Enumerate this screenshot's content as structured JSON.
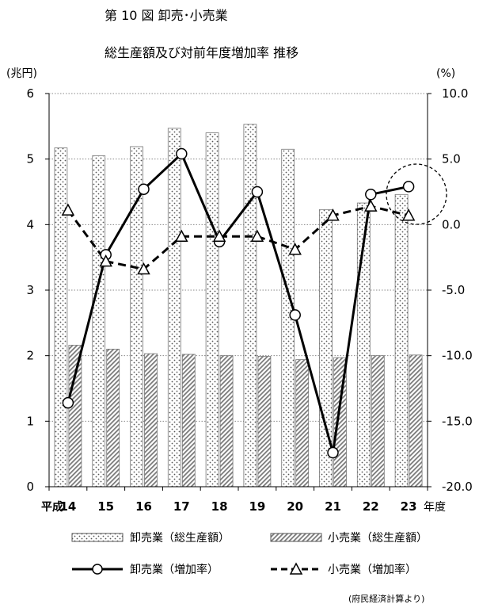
{
  "chart_data": {
    "type": "bar",
    "title": "第 10 図 卸売･小売業",
    "subtitle": "総生産額及び対前年度増加率  推移",
    "y_left_unit": "(兆円)",
    "y_right_unit": "(%)",
    "x_prefix": "平成",
    "x_suffix": "年度",
    "categories": [
      "14",
      "15",
      "16",
      "17",
      "18",
      "19",
      "20",
      "21",
      "22",
      "23"
    ],
    "ylim_left": [
      0,
      6
    ],
    "ylim_right": [
      -20.0,
      10.0
    ],
    "left_ticks": [
      "0",
      "1",
      "2",
      "3",
      "4",
      "5",
      "6"
    ],
    "right_ticks": [
      "-20.0",
      "-15.0",
      "-10.0",
      "-5.0",
      "0.0",
      "5.0",
      "10.0"
    ],
    "grid": true,
    "legend_position": "bottom",
    "series": [
      {
        "name": "卸売業（総生産額）",
        "kind": "bar",
        "axis": "left",
        "pattern": "dots",
        "values": [
          5.17,
          5.05,
          5.19,
          5.47,
          5.4,
          5.53,
          5.15,
          4.23,
          4.33,
          4.46
        ]
      },
      {
        "name": "小売業（総生産額）",
        "kind": "bar",
        "axis": "left",
        "pattern": "hatch",
        "values": [
          2.16,
          2.1,
          2.03,
          2.02,
          2.0,
          1.99,
          1.94,
          1.97,
          2.0,
          2.01
        ]
      },
      {
        "name": "卸売業（増加率）",
        "kind": "line",
        "axis": "right",
        "marker": "circle",
        "values": [
          -13.6,
          -2.3,
          2.7,
          5.4,
          -1.3,
          2.5,
          -6.9,
          -17.4,
          2.3,
          2.9
        ]
      },
      {
        "name": "小売業（増加率）",
        "kind": "line",
        "axis": "right",
        "marker": "triangle",
        "values": [
          1.1,
          -2.8,
          -3.4,
          -0.9,
          -0.9,
          -0.9,
          -1.9,
          0.7,
          1.4,
          0.7
        ]
      }
    ],
    "source_note": "(府民経済計算より)"
  }
}
